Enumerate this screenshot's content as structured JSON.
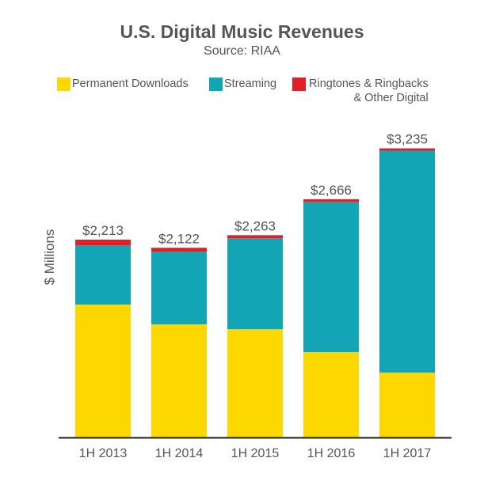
{
  "chart_data": {
    "type": "bar",
    "stacked": true,
    "title": "U.S. Digital Music Revenues",
    "subtitle": "Source: RIAA",
    "xlabel": "",
    "ylabel": "$ Millions",
    "ylim": [
      0,
      3300
    ],
    "grid": false,
    "legend_position": "top",
    "categories": [
      "1H 2013",
      "1H 2014",
      "1H 2015",
      "1H 2016",
      "1H 2017"
    ],
    "series": [
      {
        "name": "Permanent Downloads",
        "color": "#FDD800",
        "values": [
          1487,
          1265,
          1211,
          955,
          725
        ]
      },
      {
        "name": "Streaming",
        "color": "#12A5B5",
        "values": [
          663,
          814,
          1017,
          1680,
          2484
        ]
      },
      {
        "name": "Ringtones & Ringbacks & Other Digital",
        "color": "#E31E24",
        "values": [
          63,
          43,
          35,
          31,
          26
        ]
      }
    ],
    "totals": [
      2213,
      2122,
      2263,
      2666,
      3235
    ],
    "total_labels": [
      "$2,213",
      "$2,122",
      "$2,263",
      "$2,666",
      "$3,235"
    ]
  },
  "legend": {
    "items": [
      {
        "label": "Permanent Downloads",
        "color": "#FDD800"
      },
      {
        "label": "Streaming",
        "color": "#12A5B5"
      },
      {
        "label_line1": "Ringtones & Ringbacks",
        "label_line2": "& Other Digital",
        "color": "#E31E24"
      }
    ]
  }
}
